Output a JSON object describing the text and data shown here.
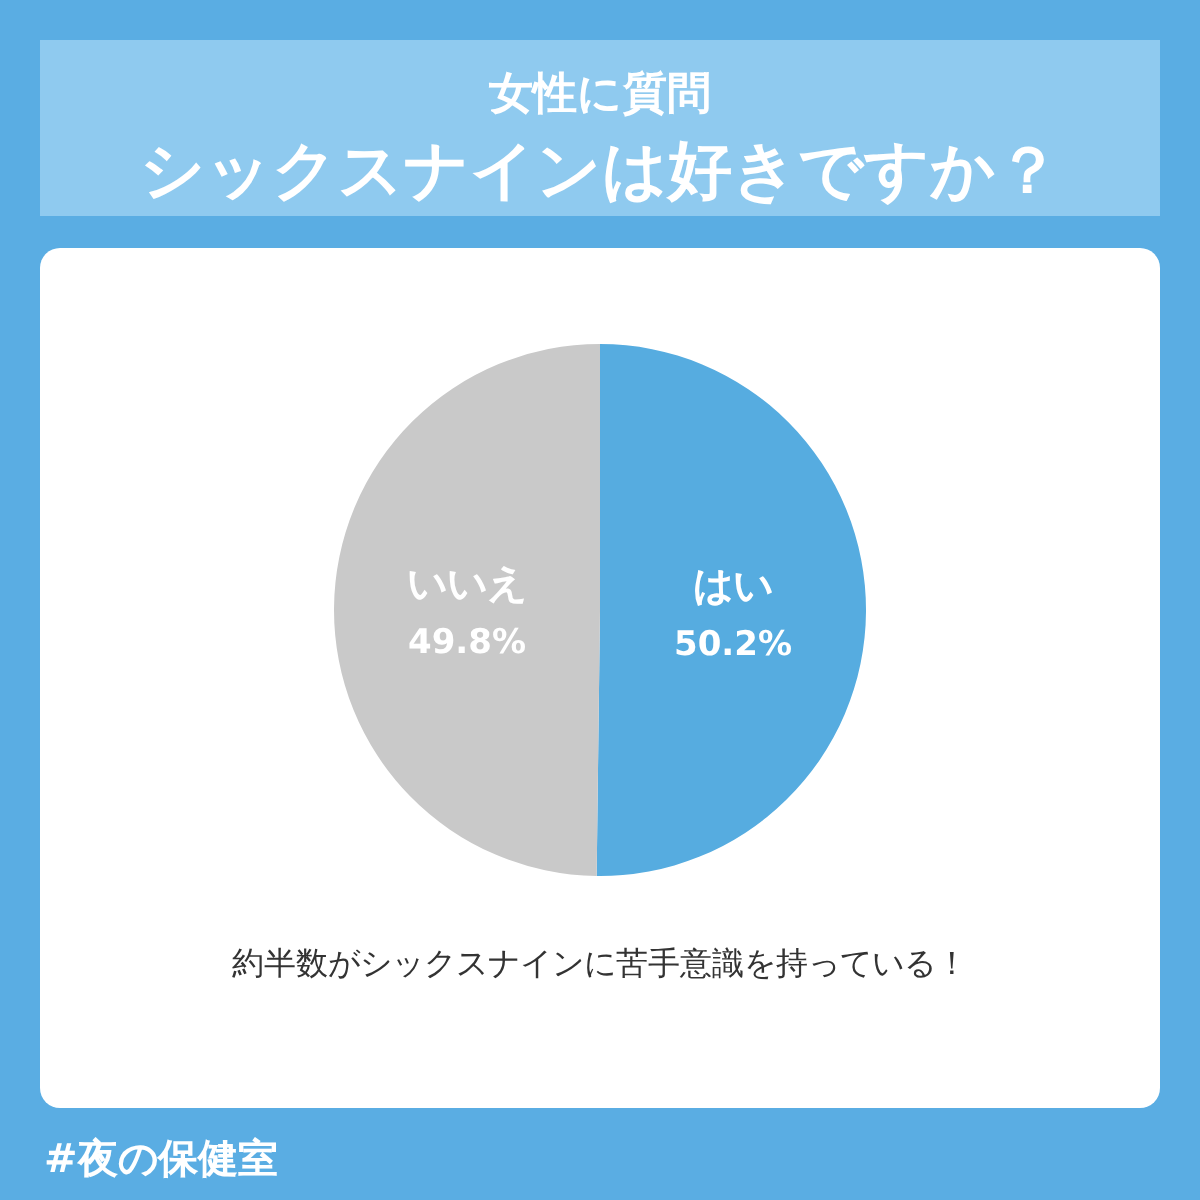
{
  "chart_data": {
    "type": "pie",
    "title": "女性に質問",
    "subtitle": "シックスナインは好きですか？",
    "categories": [
      "はい",
      "いいえ"
    ],
    "values": [
      50.2,
      49.8
    ],
    "colors": [
      "#56ace0",
      "#c9c9c9"
    ],
    "value_labels": [
      "50.2%",
      "49.8%"
    ],
    "annotations": [
      "約半数がシックスナインに苦手意識を持っている！",
      "#夜の保健室"
    ]
  }
}
